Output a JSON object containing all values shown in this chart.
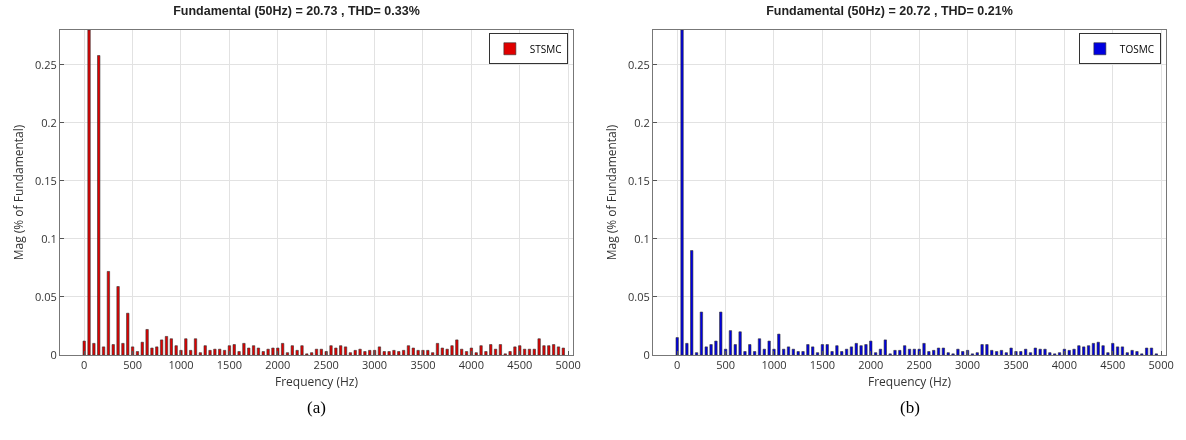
{
  "chart_data": [
    {
      "type": "bar",
      "title": "Fundamental (50Hz) = 20.73 , THD= 0.33%",
      "xlabel": "Frequency (Hz)",
      "ylabel": "Mag (% of Fundamental)",
      "annotations": [
        "(a)"
      ],
      "x": [
        0,
        50,
        100,
        150,
        200,
        250,
        300,
        350,
        400,
        450,
        500,
        550,
        600,
        650,
        700,
        750,
        800,
        850,
        900,
        950,
        1000,
        1050,
        1100,
        1150,
        1200,
        1250,
        1300,
        1350,
        1400,
        1450,
        1500,
        1550,
        1600,
        1650,
        1700,
        1750,
        1800,
        1850,
        1900,
        1950,
        2000,
        2050,
        2100,
        2150,
        2200,
        2250,
        2300,
        2350,
        2400,
        2450,
        2500,
        2550,
        2600,
        2650,
        2700,
        2750,
        2800,
        2850,
        2900,
        2950,
        3000,
        3050,
        3100,
        3150,
        3200,
        3250,
        3300,
        3350,
        3400,
        3450,
        3500,
        3550,
        3600,
        3650,
        3700,
        3750,
        3800,
        3850,
        3900,
        3950,
        4000,
        4050,
        4100,
        4150,
        4200,
        4250,
        4300,
        4350,
        4400,
        4450,
        4500,
        4550,
        4600,
        4650,
        4700,
        4750,
        4800,
        4850,
        4900,
        4950
      ],
      "series": [
        {
          "name": "STSMC",
          "color": "#e00000",
          "values": [
            0.012,
            0.28,
            0.01,
            0.258,
            0.007,
            0.072,
            0.009,
            0.059,
            0.01,
            0.036,
            0.007,
            0.003,
            0.011,
            0.022,
            0.006,
            0.007,
            0.013,
            0.016,
            0.014,
            0.008,
            0.004,
            0.014,
            0.004,
            0.014,
            0.002,
            0.008,
            0.004,
            0.005,
            0.005,
            0.004,
            0.008,
            0.009,
            0.003,
            0.01,
            0.006,
            0.008,
            0.006,
            0.003,
            0.005,
            0.006,
            0.006,
            0.01,
            0.002,
            0.008,
            0.004,
            0.008,
            0.001,
            0.002,
            0.005,
            0.005,
            0.003,
            0.008,
            0.006,
            0.008,
            0.007,
            0.002,
            0.004,
            0.005,
            0.003,
            0.004,
            0.004,
            0.007,
            0.003,
            0.003,
            0.004,
            0.003,
            0.004,
            0.008,
            0.006,
            0.004,
            0.004,
            0.004,
            0.002,
            0.01,
            0.006,
            0.005,
            0.008,
            0.013,
            0.005,
            0.003,
            0.006,
            0.002,
            0.008,
            0.003,
            0.009,
            0.005,
            0.009,
            0.001,
            0.003,
            0.007,
            0.008,
            0.005,
            0.005,
            0.005,
            0.014,
            0.008,
            0.008,
            0.009,
            0.007,
            0.006
          ]
        }
      ],
      "xlim": [
        -250,
        5050
      ],
      "xticks": [
        0,
        500,
        1000,
        1500,
        2000,
        2500,
        3000,
        3500,
        4000,
        4500,
        5000
      ],
      "ylim": [
        0,
        0.28
      ],
      "yticks": [
        0,
        0.05,
        0.1,
        0.15,
        0.2,
        0.25
      ],
      "grid": true,
      "legend": "top right"
    },
    {
      "type": "bar",
      "title": "Fundamental (50Hz) = 20.72 , THD= 0.21%",
      "xlabel": "Frequency (Hz)",
      "ylabel": "Mag (% of Fundamental)",
      "annotations": [
        "(b)"
      ],
      "x": [
        0,
        50,
        100,
        150,
        200,
        250,
        300,
        350,
        400,
        450,
        500,
        550,
        600,
        650,
        700,
        750,
        800,
        850,
        900,
        950,
        1000,
        1050,
        1100,
        1150,
        1200,
        1250,
        1300,
        1350,
        1400,
        1450,
        1500,
        1550,
        1600,
        1650,
        1700,
        1750,
        1800,
        1850,
        1900,
        1950,
        2000,
        2050,
        2100,
        2150,
        2200,
        2250,
        2300,
        2350,
        2400,
        2450,
        2500,
        2550,
        2600,
        2650,
        2700,
        2750,
        2800,
        2850,
        2900,
        2950,
        3000,
        3050,
        3100,
        3150,
        3200,
        3250,
        3300,
        3350,
        3400,
        3450,
        3500,
        3550,
        3600,
        3650,
        3700,
        3750,
        3800,
        3850,
        3900,
        3950,
        4000,
        4050,
        4100,
        4150,
        4200,
        4250,
        4300,
        4350,
        4400,
        4450,
        4500,
        4550,
        4600,
        4650,
        4700,
        4750,
        4800,
        4850,
        4900,
        4950
      ],
      "series": [
        {
          "name": "TOSMC",
          "color": "#0000e0",
          "values": [
            0.015,
            0.28,
            0.01,
            0.09,
            0.002,
            0.037,
            0.007,
            0.009,
            0.012,
            0.037,
            0.005,
            0.021,
            0.009,
            0.02,
            0.003,
            0.009,
            0.003,
            0.014,
            0.005,
            0.012,
            0.005,
            0.018,
            0.005,
            0.007,
            0.005,
            0.003,
            0.003,
            0.009,
            0.007,
            0.002,
            0.009,
            0.009,
            0.003,
            0.008,
            0.003,
            0.005,
            0.007,
            0.01,
            0.008,
            0.009,
            0.012,
            0.002,
            0.005,
            0.013,
            0.001,
            0.004,
            0.004,
            0.008,
            0.005,
            0.005,
            0.005,
            0.01,
            0.003,
            0.004,
            0.006,
            0.006,
            0.002,
            0.001,
            0.005,
            0.003,
            0.004,
            0.001,
            0.002,
            0.009,
            0.009,
            0.004,
            0.003,
            0.004,
            0.002,
            0.006,
            0.003,
            0.003,
            0.005,
            0.002,
            0.006,
            0.005,
            0.005,
            0.002,
            0.001,
            0.002,
            0.005,
            0.004,
            0.005,
            0.008,
            0.007,
            0.008,
            0.01,
            0.011,
            0.008,
            0.002,
            0.01,
            0.007,
            0.007,
            0.002,
            0.004,
            0.003,
            0.001,
            0.006,
            0.006,
            0.001
          ]
        }
      ],
      "xlim": [
        -250,
        5050
      ],
      "xticks": [
        0,
        500,
        1000,
        1500,
        2000,
        2500,
        3000,
        3500,
        4000,
        4500,
        5000
      ],
      "ylim": [
        0,
        0.28
      ],
      "yticks": [
        0,
        0.05,
        0.1,
        0.15,
        0.2,
        0.25
      ],
      "grid": true,
      "legend": "top right"
    }
  ]
}
